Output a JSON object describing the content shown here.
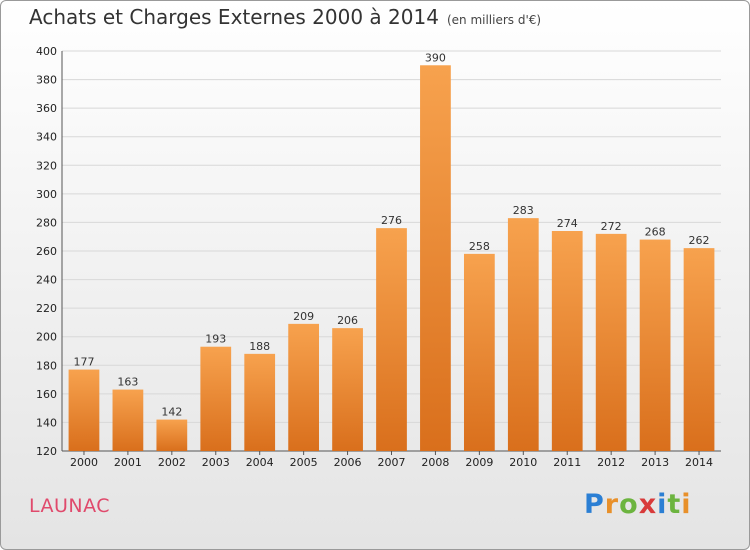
{
  "header": {
    "title": "Achats et Charges Externes 2000 à 2014",
    "subtitle": "(en milliers d'€)"
  },
  "footer": {
    "town": "LAUNAC",
    "logo_letters": [
      "P",
      "r",
      "o",
      "x",
      "i",
      "t",
      "i"
    ]
  },
  "colors": {
    "bar_top": "#f7a24e",
    "bar_bottom": "#d96f1c",
    "grid": "#d8d8d8"
  },
  "chart_data": {
    "type": "bar",
    "title": "Achats et Charges Externes 2000 à 2014",
    "subtitle": "(en milliers d'€)",
    "categories": [
      "2000",
      "2001",
      "2002",
      "2003",
      "2004",
      "2005",
      "2006",
      "2007",
      "2008",
      "2009",
      "2010",
      "2011",
      "2012",
      "2013",
      "2014"
    ],
    "values": [
      177,
      163,
      142,
      193,
      188,
      209,
      206,
      276,
      390,
      258,
      283,
      274,
      272,
      268,
      262
    ],
    "ylim": [
      120,
      400
    ],
    "yticks": [
      120,
      140,
      160,
      180,
      200,
      220,
      240,
      260,
      280,
      300,
      320,
      340,
      360,
      380,
      400
    ],
    "grid": true,
    "xlabel": "",
    "ylabel": ""
  }
}
